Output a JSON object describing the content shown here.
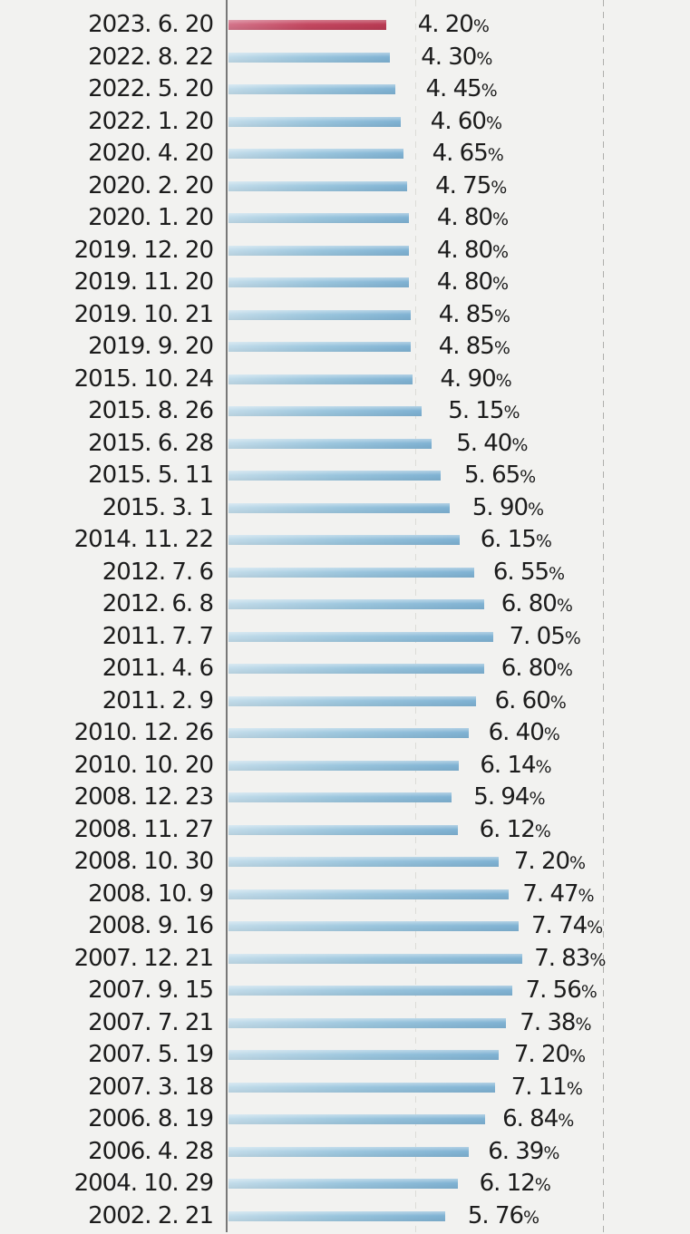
{
  "chart_data": {
    "type": "bar",
    "orientation": "horizontal",
    "title": "",
    "xlabel": "",
    "ylabel": "",
    "xlim": [
      0,
      10
    ],
    "gridlines_pct": [
      5,
      10
    ],
    "grid": "dashed-vertical",
    "legend": "none",
    "highlight_index": 0,
    "categories": [
      "2023. 6. 20",
      "2022. 8. 22",
      "2022. 5. 20",
      "2022. 1. 20",
      "2020. 4. 20",
      "2020. 2. 20",
      "2020. 1. 20",
      "2019. 12. 20",
      "2019. 11. 20",
      "2019. 10. 21",
      "2019. 9. 20",
      "2015. 10. 24",
      "2015. 8. 26",
      "2015. 6. 28",
      "2015. 5. 11",
      "2015. 3. 1",
      "2014. 11. 22",
      "2012. 7. 6",
      "2012. 6. 8",
      "2011. 7. 7",
      "2011. 4. 6",
      "2011. 2. 9",
      "2010. 12. 26",
      "2010. 10. 20",
      "2008. 12. 23",
      "2008. 11. 27",
      "2008. 10. 30",
      "2008. 10. 9",
      "2008. 9. 16",
      "2007. 12. 21",
      "2007. 9. 15",
      "2007. 7. 21",
      "2007. 5. 19",
      "2007. 3. 18",
      "2006. 8. 19",
      "2006. 4. 28",
      "2004. 10. 29",
      "2002. 2. 21"
    ],
    "values": [
      4.2,
      4.3,
      4.45,
      4.6,
      4.65,
      4.75,
      4.8,
      4.8,
      4.8,
      4.85,
      4.85,
      4.9,
      5.15,
      5.4,
      5.65,
      5.9,
      6.15,
      6.55,
      6.8,
      7.05,
      6.8,
      6.6,
      6.4,
      6.14,
      5.94,
      6.12,
      7.2,
      7.47,
      7.74,
      7.83,
      7.56,
      7.38,
      7.2,
      7.11,
      6.84,
      6.39,
      6.12,
      5.76
    ],
    "value_labels": [
      "4. 20%",
      "4. 30%",
      "4. 45%",
      "4. 60%",
      "4. 65%",
      "4. 75%",
      "4. 80%",
      "4. 80%",
      "4. 80%",
      "4. 85%",
      "4. 85%",
      "4. 90%",
      "5. 15%",
      "5. 40%",
      "5. 65%",
      "5. 90%",
      "6. 15%",
      "6. 55%",
      "6. 80%",
      "7. 05%",
      "6. 80%",
      "6. 60%",
      "6. 40%",
      "6. 14%",
      "5. 94%",
      "6. 12%",
      "7. 20%",
      "7. 47%",
      "7. 74%",
      "7. 83%",
      "7. 56%",
      "7. 38%",
      "7. 20%",
      "7. 11%",
      "6. 84%",
      "6. 39%",
      "6. 12%",
      "5. 76%"
    ],
    "colors": {
      "background": "#f2f2f0",
      "text": "#1c1c1c",
      "axis": "#787878",
      "gridline_5pct": "#dcdcd7",
      "gridline_10pct": "#aeaeab",
      "bar_gradient_left": "#c2dcea",
      "bar_gradient_mid": "#9bc6de",
      "bar_gradient_right": "#7fb2d3",
      "highlight_gradient_left": "#d4748a",
      "highlight_gradient_mid": "#c44760",
      "highlight_gradient_right": "#b93a53"
    }
  }
}
